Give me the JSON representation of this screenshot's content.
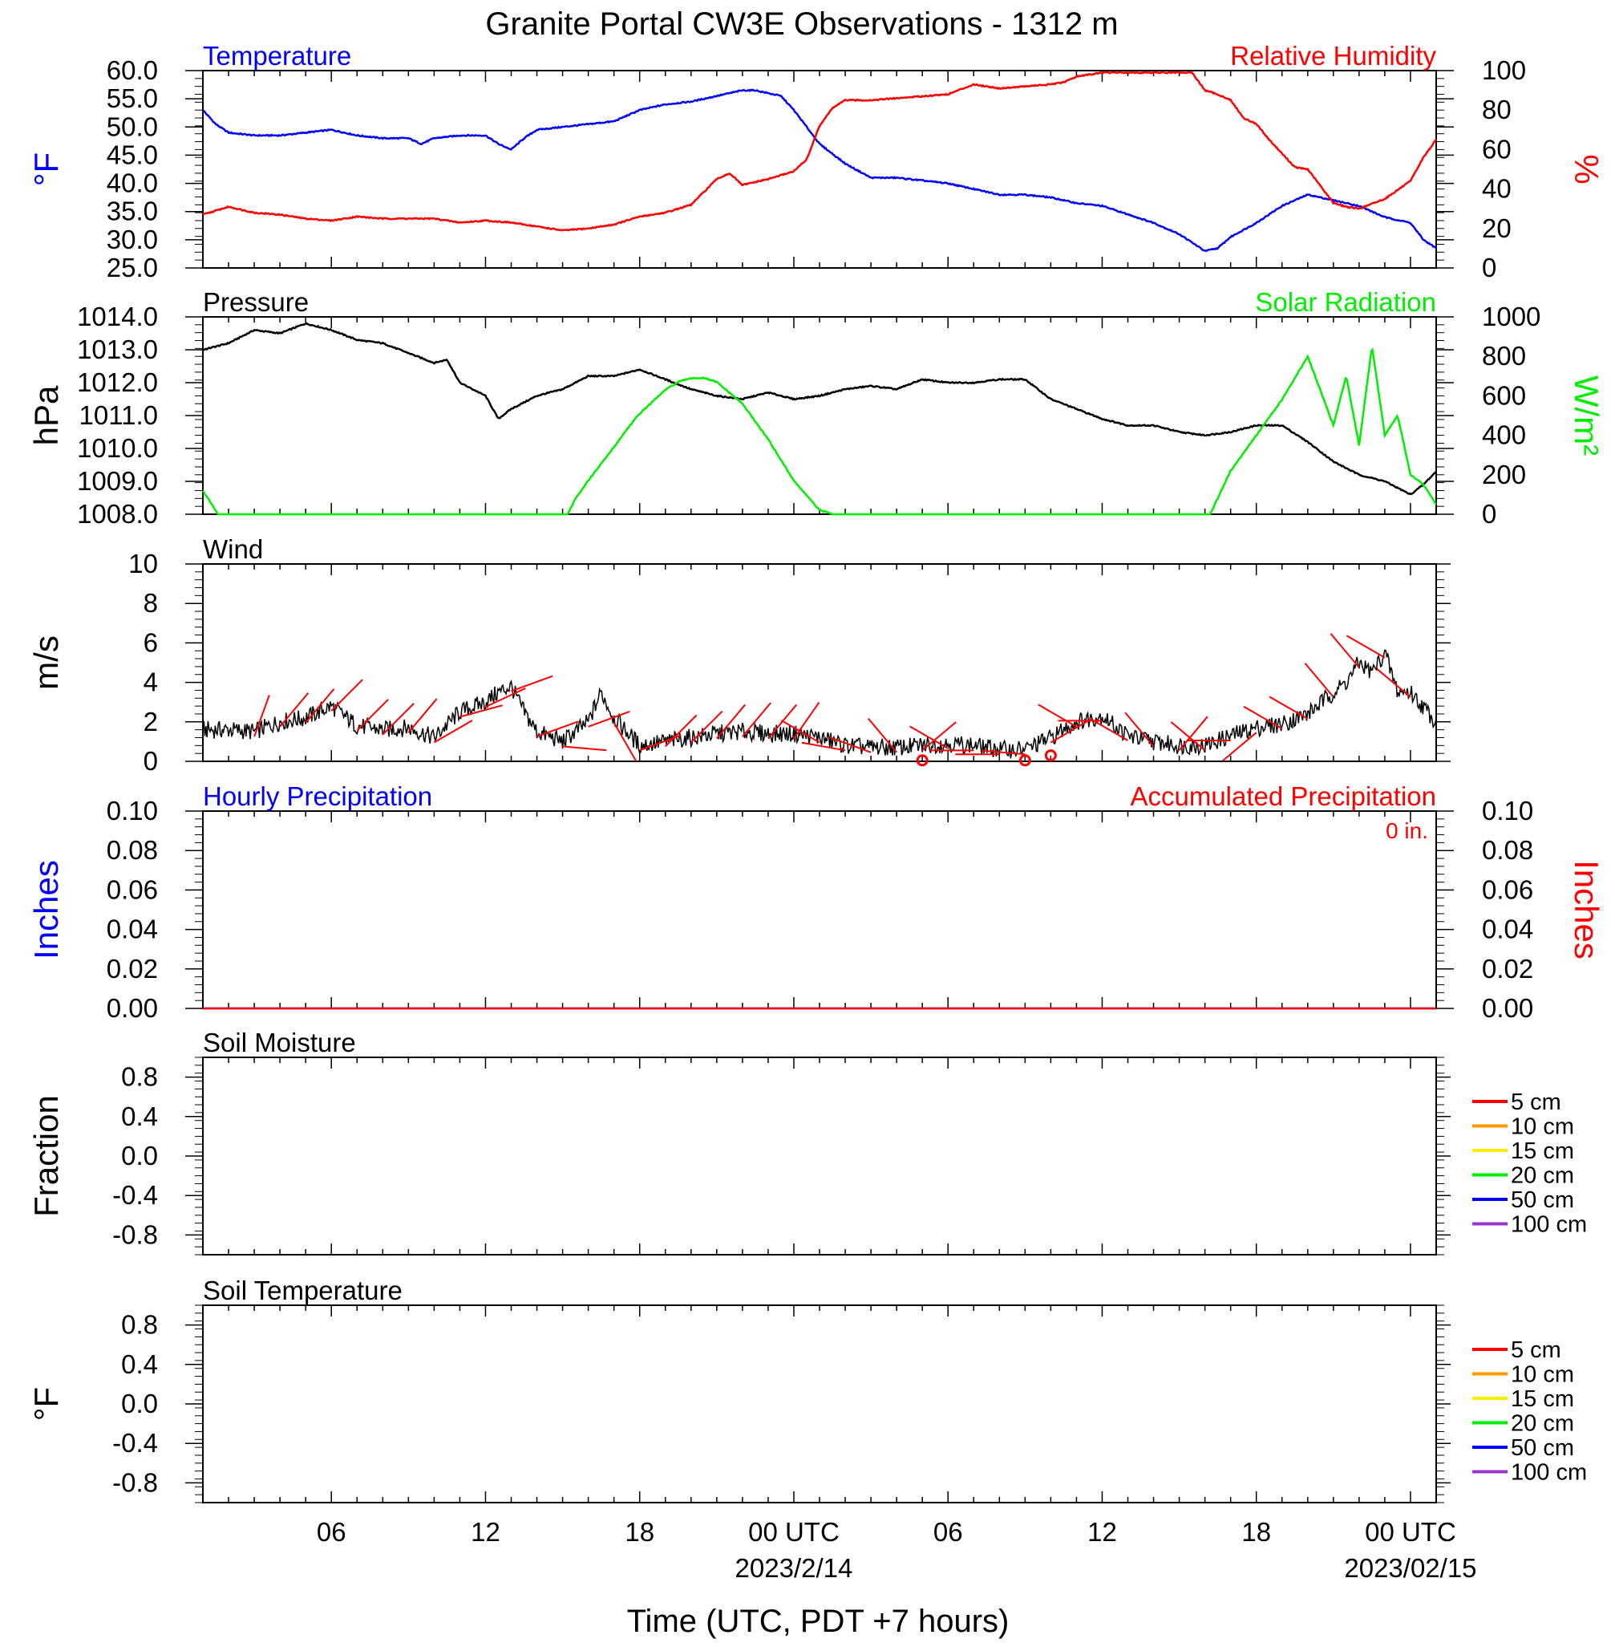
{
  "title": "Granite Portal CW3E Observations - 1312 m",
  "xlabel": "Time (UTC, PDT +7 hours)",
  "x_ticks": [
    {
      "t": 6,
      "label": "06"
    },
    {
      "t": 12,
      "label": "12"
    },
    {
      "t": 18,
      "label": "18"
    },
    {
      "t": 24,
      "label": "00 UTC",
      "date": "2023/2/14"
    },
    {
      "t": 30,
      "label": "06"
    },
    {
      "t": 36,
      "label": "12"
    },
    {
      "t": 42,
      "label": "18"
    },
    {
      "t": 48,
      "label": "00 UTC",
      "date": "2023/02/15"
    }
  ],
  "colors": {
    "temperature": "#0000ff",
    "humidity": "#ff0000",
    "pressure": "#000000",
    "solar": "#00ee00",
    "wind": "#000000",
    "barb": "#ff0000",
    "precip_hourly": "#0000ff",
    "precip_accum": "#ff0000"
  },
  "chart_data": [
    {
      "type": "line",
      "panel": "temperature-humidity",
      "left_title": "Temperature",
      "right_title": "Relative Humidity",
      "ylabel_left": "°F",
      "ylabel_right": "%",
      "ylim_left": [
        25,
        60
      ],
      "ylim_right": [
        0,
        100
      ],
      "yticks_left": [
        "25.0",
        "30.0",
        "35.0",
        "40.0",
        "45.0",
        "50.0",
        "55.0",
        "60.0"
      ],
      "yticks_right": [
        "0",
        "20",
        "40",
        "60",
        "80",
        "100"
      ],
      "xlim": [
        1,
        49
      ],
      "series": [
        {
          "axis": "left",
          "x": [
            1,
            1.5,
            2,
            3,
            4,
            5,
            6,
            7,
            8,
            9,
            9.5,
            10,
            11,
            12,
            12.5,
            13,
            13.5,
            14,
            15,
            16,
            17,
            18,
            19,
            20,
            21,
            22,
            22.5,
            23,
            23.5,
            24,
            24.5,
            25,
            26,
            27,
            28,
            29,
            30,
            31,
            32,
            33,
            34,
            35,
            36,
            37,
            38,
            39,
            39.5,
            40,
            40.5,
            41,
            42,
            43,
            44,
            45,
            46,
            47,
            48,
            48.5,
            49
          ],
          "values": [
            53,
            50.5,
            49,
            48.5,
            48.5,
            49,
            49.5,
            48.5,
            48,
            48,
            47,
            48,
            48.5,
            48.5,
            47,
            46,
            48,
            49.5,
            50,
            50.5,
            51,
            53,
            54,
            54.5,
            55.5,
            56.5,
            56.5,
            56,
            55.5,
            53,
            50,
            47,
            43.5,
            41,
            41,
            40.5,
            40,
            39,
            38,
            38,
            37.5,
            36.5,
            36,
            34.5,
            33,
            31,
            29.5,
            28,
            28.5,
            30.5,
            33,
            36,
            38,
            37,
            36,
            34,
            33,
            30,
            28.5
          ]
        },
        {
          "axis": "right",
          "x": [
            1,
            1.5,
            2,
            3,
            4,
            5,
            6,
            7,
            8,
            9,
            10,
            11,
            12,
            13,
            14,
            15,
            16,
            17,
            18,
            19,
            19.5,
            20,
            21,
            21.5,
            22,
            23,
            24,
            24.5,
            25,
            25.5,
            26,
            27,
            28,
            29,
            30,
            31,
            32,
            33,
            34,
            34.5,
            35,
            36,
            37,
            38,
            39,
            39.5,
            40,
            40.5,
            41,
            41.5,
            42,
            42.5,
            43,
            43.5,
            44,
            45,
            45.5,
            46,
            47,
            48,
            48.5,
            49
          ],
          "values": [
            27,
            29,
            31,
            28,
            27,
            25,
            24,
            26,
            25,
            25,
            25,
            23,
            24,
            23,
            21,
            19,
            20,
            22,
            26,
            28,
            30,
            32,
            45,
            48,
            42,
            45,
            49,
            55,
            72,
            81,
            85,
            85,
            86,
            87,
            88,
            93,
            91,
            92,
            93,
            94,
            97,
            99,
            99,
            99,
            99,
            99,
            90,
            88,
            85,
            76,
            73,
            65,
            58,
            51,
            50,
            33,
            31,
            30,
            35,
            44,
            56,
            65
          ]
        }
      ]
    },
    {
      "type": "line",
      "panel": "pressure-solar",
      "left_title": "Pressure",
      "right_title": "Solar Radiation",
      "ylabel_left": "hPa",
      "ylabel_right": "W/m²",
      "ylim_left": [
        1008,
        1014
      ],
      "ylim_right": [
        0,
        1000
      ],
      "yticks_left": [
        "1008.0",
        "1009.0",
        "1010.0",
        "1011.0",
        "1012.0",
        "1013.0",
        "1014.0"
      ],
      "yticks_right": [
        "0",
        "200",
        "400",
        "600",
        "800",
        "1000"
      ],
      "xlim": [
        1,
        49
      ],
      "series": [
        {
          "axis": "left",
          "x": [
            1,
            2,
            3,
            4,
            5,
            6,
            7,
            8,
            9,
            10,
            10.5,
            11,
            12,
            12.5,
            13,
            14,
            15,
            16,
            17,
            18,
            19,
            20,
            21,
            22,
            23,
            24,
            25,
            26,
            27,
            28,
            29,
            30,
            31,
            32,
            33,
            34,
            35,
            36,
            37,
            38,
            39,
            40,
            41,
            42,
            43,
            44,
            45,
            46,
            47,
            48,
            48.5,
            49
          ],
          "values": [
            1013,
            1013.2,
            1013.6,
            1013.5,
            1013.8,
            1013.6,
            1013.3,
            1013.2,
            1012.9,
            1012.6,
            1012.7,
            1012,
            1011.6,
            1010.9,
            1011.2,
            1011.6,
            1011.8,
            1012.2,
            1012.2,
            1012.4,
            1012.1,
            1011.8,
            1011.6,
            1011.5,
            1011.7,
            1011.5,
            1011.6,
            1011.8,
            1011.9,
            1011.8,
            1012.1,
            1012,
            1012,
            1012.1,
            1012.1,
            1011.5,
            1011.2,
            1010.9,
            1010.7,
            1010.7,
            1010.5,
            1010.4,
            1010.5,
            1010.7,
            1010.7,
            1010.2,
            1009.6,
            1009.2,
            1009,
            1008.6,
            1008.9,
            1009.3
          ]
        },
        {
          "axis": "right",
          "x": [
            1,
            1.6,
            2,
            4,
            6,
            8,
            10,
            12,
            14,
            15.2,
            15.5,
            16,
            17,
            17.5,
            18,
            19,
            19.5,
            20,
            20.5,
            21,
            22,
            23,
            24,
            25,
            25.6,
            26,
            28,
            30,
            32,
            34,
            36,
            38,
            40,
            40.2,
            41,
            42,
            43,
            44,
            45,
            45.5,
            46,
            46.5,
            47,
            47.5,
            48,
            48.5,
            49
          ],
          "values": [
            120,
            0,
            0,
            0,
            0,
            0,
            0,
            0,
            0,
            0,
            80,
            170,
            340,
            430,
            510,
            630,
            670,
            690,
            690,
            670,
            560,
            380,
            170,
            20,
            0,
            0,
            0,
            0,
            0,
            0,
            0,
            0,
            0,
            0,
            220,
            400,
            580,
            800,
            450,
            700,
            350,
            850,
            400,
            500,
            200,
            150,
            50
          ]
        }
      ]
    },
    {
      "type": "line",
      "panel": "wind",
      "left_title": "Wind",
      "ylabel_left": "m/s",
      "ylim_left": [
        0,
        10
      ],
      "yticks_left": [
        "0",
        "2",
        "4",
        "6",
        "8",
        "10"
      ],
      "xlim": [
        1,
        49
      ],
      "series": [
        {
          "axis": "left",
          "x": [
            1,
            2,
            3,
            4,
            5,
            6,
            7,
            8,
            9,
            10,
            11,
            12,
            12.5,
            13,
            13.5,
            14,
            15,
            16,
            16.5,
            17,
            18,
            19,
            20,
            21,
            22,
            23,
            24,
            25,
            26,
            27,
            28,
            29,
            30,
            31,
            32,
            33,
            34,
            35,
            36,
            37,
            38,
            39,
            40,
            41,
            42,
            43,
            44,
            45,
            45.5,
            46,
            46.5,
            47,
            47.5,
            48,
            49
          ],
          "values": [
            1.6,
            1.6,
            1.5,
            2,
            2.2,
            2.8,
            1.8,
            1.6,
            1.7,
            1.2,
            2.5,
            3,
            3.5,
            3.8,
            2.5,
            1.5,
            1,
            2,
            3.5,
            2.2,
            0.8,
            1,
            1.2,
            1.4,
            1.5,
            1.4,
            1.4,
            1.2,
            0.8,
            0.7,
            0.7,
            0.8,
            0.9,
            0.8,
            0.6,
            0.6,
            1.2,
            2,
            2.3,
            1.3,
            1,
            0.8,
            0.8,
            1.3,
            1.7,
            1.9,
            2.4,
            3.5,
            4,
            5,
            4.5,
            5.5,
            3.5,
            3.5,
            2
          ]
        }
      ],
      "barbs": [
        {
          "x": 3,
          "dir": 20
        },
        {
          "x": 4,
          "dir": 40
        },
        {
          "x": 5,
          "dir": 40
        },
        {
          "x": 6,
          "dir": 45
        },
        {
          "x": 7,
          "dir": 45
        },
        {
          "x": 8,
          "dir": 45
        },
        {
          "x": 9,
          "dir": 40
        },
        {
          "x": 10,
          "dir": 60
        },
        {
          "x": 11,
          "dir": 75
        },
        {
          "x": 12,
          "dir": 65
        },
        {
          "x": 13,
          "dir": 70
        },
        {
          "x": 14,
          "dir": 70
        },
        {
          "x": 15,
          "dir": 95
        },
        {
          "x": 16,
          "dir": 70
        },
        {
          "x": 17,
          "dir": 150
        },
        {
          "x": 18,
          "dir": 70
        },
        {
          "x": 19,
          "dir": 45
        },
        {
          "x": 20,
          "dir": 45
        },
        {
          "x": 21,
          "dir": 40
        },
        {
          "x": 22,
          "dir": 40
        },
        {
          "x": 23,
          "dir": 40
        },
        {
          "x": 24,
          "dir": 35
        },
        {
          "x": 25,
          "dir": 300
        },
        {
          "x": 26,
          "dir": 280
        },
        {
          "x": 27,
          "dir": 290
        },
        {
          "x": 28,
          "dir": 320
        },
        {
          "x": 29,
          "dir": 50
        },
        {
          "x": 30,
          "dir": 300
        },
        {
          "x": 31,
          "dir": 270
        },
        {
          "x": 32,
          "dir": 270
        },
        {
          "x": 33,
          "dir": 275
        },
        {
          "x": 34,
          "dir": 60
        },
        {
          "x": 35,
          "dir": 300
        },
        {
          "x": 36,
          "dir": 270
        },
        {
          "x": 37,
          "dir": 300
        },
        {
          "x": 38,
          "dir": 320
        },
        {
          "x": 39,
          "dir": 40
        },
        {
          "x": 40,
          "dir": 310
        },
        {
          "x": 41,
          "dir": 270
        },
        {
          "x": 42,
          "dir": 230
        },
        {
          "x": 43,
          "dir": 300
        },
        {
          "x": 44,
          "dir": 300
        },
        {
          "x": 45,
          "dir": 320
        },
        {
          "x": 46,
          "dir": 320
        },
        {
          "x": 47,
          "dir": 300
        },
        {
          "x": 48,
          "dir": 310
        }
      ],
      "calm_markers": [
        {
          "x": 29,
          "value": 0.05
        },
        {
          "x": 33,
          "value": 0.05
        },
        {
          "x": 34,
          "value": 0.3
        }
      ]
    },
    {
      "type": "line",
      "panel": "precipitation",
      "left_title": "Hourly Precipitation",
      "right_title": "Accumulated Precipitation",
      "annotation": "0 in.",
      "ylabel_left": "Inches",
      "ylabel_right": "Inches",
      "ylim_left": [
        0,
        0.1
      ],
      "ylim_right": [
        0,
        0.1
      ],
      "yticks_left": [
        "0.00",
        "0.02",
        "0.04",
        "0.06",
        "0.08",
        "0.10"
      ],
      "yticks_right": [
        "0.00",
        "0.02",
        "0.04",
        "0.06",
        "0.08",
        "0.10"
      ],
      "xlim": [
        1,
        49
      ],
      "series": [
        {
          "axis": "left",
          "x": [
            1,
            49
          ],
          "values": [
            0,
            0
          ]
        },
        {
          "axis": "right",
          "x": [
            1,
            49
          ],
          "values": [
            0,
            0
          ]
        }
      ]
    },
    {
      "type": "line",
      "panel": "soil-moisture",
      "left_title": "Soil Moisture",
      "ylabel_left": "Fraction",
      "ylim_left": [
        -1,
        1
      ],
      "yticks_left": [
        "-0.8",
        "-0.4",
        "0.0",
        "0.4",
        "0.8"
      ],
      "xlim": [
        1,
        49
      ],
      "legend": [
        {
          "name": "5 cm",
          "color": "#ff0000"
        },
        {
          "name": "10 cm",
          "color": "#ff9900"
        },
        {
          "name": "15 cm",
          "color": "#ffee00"
        },
        {
          "name": "20 cm",
          "color": "#00ee00"
        },
        {
          "name": "50 cm",
          "color": "#0000ff"
        },
        {
          "name": "100 cm",
          "color": "#9933cc"
        }
      ],
      "series": []
    },
    {
      "type": "line",
      "panel": "soil-temperature",
      "left_title": "Soil Temperature",
      "ylabel_left": "°F",
      "ylim_left": [
        -1,
        1
      ],
      "yticks_left": [
        "-0.8",
        "-0.4",
        "0.0",
        "0.4",
        "0.8"
      ],
      "xlim": [
        1,
        49
      ],
      "legend": [
        {
          "name": "5 cm",
          "color": "#ff0000"
        },
        {
          "name": "10 cm",
          "color": "#ff9900"
        },
        {
          "name": "15 cm",
          "color": "#ffee00"
        },
        {
          "name": "20 cm",
          "color": "#00ee00"
        },
        {
          "name": "50 cm",
          "color": "#0000ff"
        },
        {
          "name": "100 cm",
          "color": "#9933cc"
        }
      ],
      "series": []
    }
  ]
}
